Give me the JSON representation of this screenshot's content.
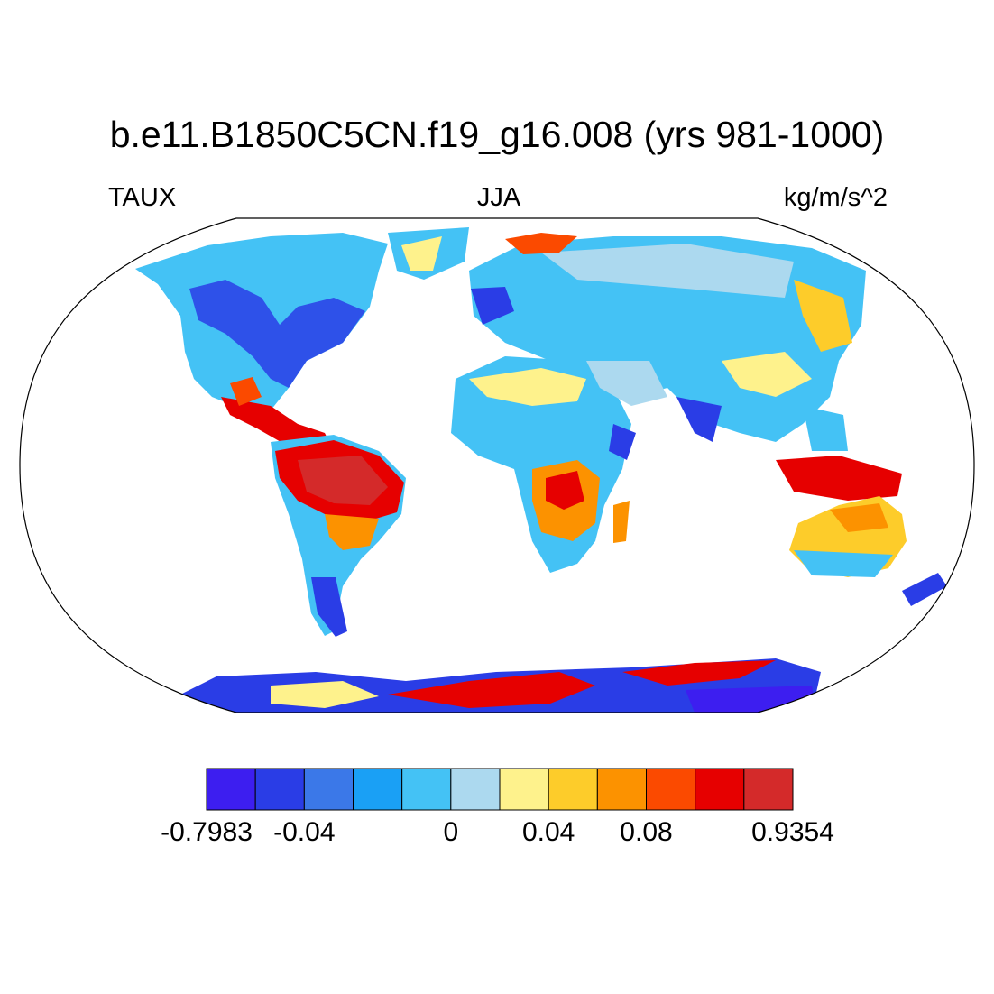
{
  "title": "b.e11.B1850C5CN.f19_g16.008 (yrs 981-1000)",
  "subtitle_left": "TAUX",
  "subtitle_center": "JJA",
  "subtitle_right": "kg/m/s^2",
  "projection": "Robinson",
  "colorbar": {
    "colors": [
      "#3d1ef0",
      "#2a3de6",
      "#3b78e8",
      "#1aa0f5",
      "#44c2f5",
      "#acd9ef",
      "#fef28c",
      "#fdcc2a",
      "#fc9200",
      "#fb4a00",
      "#e60000",
      "#d42a2a"
    ],
    "labels": [
      "-0.7983",
      "-0.04",
      "0",
      "0.04",
      "0.08",
      "0.9354"
    ],
    "label_boundaries": [
      0,
      2,
      5,
      7,
      9,
      12
    ]
  },
  "regions": [
    {
      "name": "North America",
      "color": "#44c2f5"
    },
    {
      "name": "Amazon",
      "color": "#e60000"
    },
    {
      "name": "Sahara",
      "color": "#fef28c"
    },
    {
      "name": "Southern Africa",
      "color": "#fc9200"
    },
    {
      "name": "Eurasia",
      "color": "#44c2f5"
    },
    {
      "name": "Australia",
      "color": "#fdcc2a"
    },
    {
      "name": "Antarctica",
      "color": "#3d1ef0"
    }
  ]
}
